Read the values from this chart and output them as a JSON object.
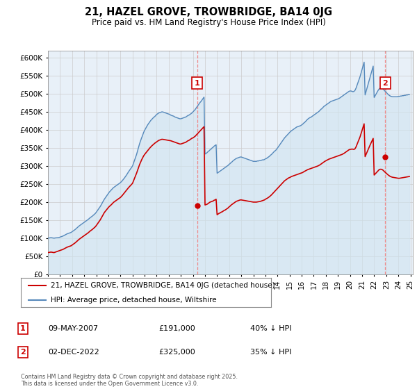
{
  "title": "21, HAZEL GROVE, TROWBRIDGE, BA14 0JG",
  "subtitle": "Price paid vs. HM Land Registry's House Price Index (HPI)",
  "ylim": [
    0,
    620000
  ],
  "yticks": [
    0,
    50000,
    100000,
    150000,
    200000,
    250000,
    300000,
    350000,
    400000,
    450000,
    500000,
    550000,
    600000
  ],
  "legend1": "21, HAZEL GROVE, TROWBRIDGE, BA14 0JG (detached house)",
  "legend2": "HPI: Average price, detached house, Wiltshire",
  "annotation1": {
    "label": "1",
    "date": "09-MAY-2007",
    "price": "£191,000",
    "desc": "40% ↓ HPI"
  },
  "annotation2": {
    "label": "2",
    "date": "02-DEC-2022",
    "price": "£325,000",
    "desc": "35% ↓ HPI"
  },
  "footer": "Contains HM Land Registry data © Crown copyright and database right 2025.\nThis data is licensed under the Open Government Licence v3.0.",
  "line_color_red": "#cc0000",
  "line_color_blue": "#5588bb",
  "fill_color_blue": "#d0e4f0",
  "vline_color": "#ee8888",
  "background_color": "#ffffff",
  "chart_bg_color": "#e8f0f8",
  "grid_color": "#cccccc",
  "hpi_years": [
    1995,
    1995.083,
    1995.167,
    1995.25,
    1995.333,
    1995.417,
    1995.5,
    1995.583,
    1995.667,
    1995.75,
    1995.833,
    1995.917,
    1996,
    1996.083,
    1996.167,
    1996.25,
    1996.333,
    1996.417,
    1996.5,
    1996.583,
    1996.667,
    1996.75,
    1996.833,
    1996.917,
    1997,
    1997.083,
    1997.167,
    1997.25,
    1997.333,
    1997.417,
    1997.5,
    1997.583,
    1997.667,
    1997.75,
    1997.833,
    1997.917,
    1998,
    1998.083,
    1998.167,
    1998.25,
    1998.333,
    1998.417,
    1998.5,
    1998.583,
    1998.667,
    1998.75,
    1998.833,
    1998.917,
    1999,
    1999.083,
    1999.167,
    1999.25,
    1999.333,
    1999.417,
    1999.5,
    1999.583,
    1999.667,
    1999.75,
    1999.833,
    1999.917,
    2000,
    2000.083,
    2000.167,
    2000.25,
    2000.333,
    2000.417,
    2000.5,
    2000.583,
    2000.667,
    2000.75,
    2000.833,
    2000.917,
    2001,
    2001.083,
    2001.167,
    2001.25,
    2001.333,
    2001.417,
    2001.5,
    2001.583,
    2001.667,
    2001.75,
    2001.833,
    2001.917,
    2002,
    2002.083,
    2002.167,
    2002.25,
    2002.333,
    2002.417,
    2002.5,
    2002.583,
    2002.667,
    2002.75,
    2002.833,
    2002.917,
    2003,
    2003.083,
    2003.167,
    2003.25,
    2003.333,
    2003.417,
    2003.5,
    2003.583,
    2003.667,
    2003.75,
    2003.833,
    2003.917,
    2004,
    2004.083,
    2004.167,
    2004.25,
    2004.333,
    2004.417,
    2004.5,
    2004.583,
    2004.667,
    2004.75,
    2004.833,
    2004.917,
    2005,
    2005.083,
    2005.167,
    2005.25,
    2005.333,
    2005.417,
    2005.5,
    2005.583,
    2005.667,
    2005.75,
    2005.833,
    2005.917,
    2006,
    2006.083,
    2006.167,
    2006.25,
    2006.333,
    2006.417,
    2006.5,
    2006.583,
    2006.667,
    2006.75,
    2006.833,
    2006.917,
    2007,
    2007.083,
    2007.167,
    2007.25,
    2007.333,
    2007.417,
    2007.5,
    2007.583,
    2007.667,
    2007.75,
    2007.833,
    2007.917,
    2008,
    2008.083,
    2008.167,
    2008.25,
    2008.333,
    2008.417,
    2008.5,
    2008.583,
    2008.667,
    2008.75,
    2008.833,
    2008.917,
    2009,
    2009.083,
    2009.167,
    2009.25,
    2009.333,
    2009.417,
    2009.5,
    2009.583,
    2009.667,
    2009.75,
    2009.833,
    2009.917,
    2010,
    2010.083,
    2010.167,
    2010.25,
    2010.333,
    2010.417,
    2010.5,
    2010.583,
    2010.667,
    2010.75,
    2010.833,
    2010.917,
    2011,
    2011.083,
    2011.167,
    2011.25,
    2011.333,
    2011.417,
    2011.5,
    2011.583,
    2011.667,
    2011.75,
    2011.833,
    2011.917,
    2012,
    2012.083,
    2012.167,
    2012.25,
    2012.333,
    2012.417,
    2012.5,
    2012.583,
    2012.667,
    2012.75,
    2012.833,
    2012.917,
    2013,
    2013.083,
    2013.167,
    2013.25,
    2013.333,
    2013.417,
    2013.5,
    2013.583,
    2013.667,
    2013.75,
    2013.833,
    2013.917,
    2014,
    2014.083,
    2014.167,
    2014.25,
    2014.333,
    2014.417,
    2014.5,
    2014.583,
    2014.667,
    2014.75,
    2014.833,
    2014.917,
    2015,
    2015.083,
    2015.167,
    2015.25,
    2015.333,
    2015.417,
    2015.5,
    2015.583,
    2015.667,
    2015.75,
    2015.833,
    2015.917,
    2016,
    2016.083,
    2016.167,
    2016.25,
    2016.333,
    2016.417,
    2016.5,
    2016.583,
    2016.667,
    2016.75,
    2016.833,
    2016.917,
    2017,
    2017.083,
    2017.167,
    2017.25,
    2017.333,
    2017.417,
    2017.5,
    2017.583,
    2017.667,
    2017.75,
    2017.833,
    2017.917,
    2018,
    2018.083,
    2018.167,
    2018.25,
    2018.333,
    2018.417,
    2018.5,
    2018.583,
    2018.667,
    2018.75,
    2018.833,
    2018.917,
    2019,
    2019.083,
    2019.167,
    2019.25,
    2019.333,
    2019.417,
    2019.5,
    2019.583,
    2019.667,
    2019.75,
    2019.833,
    2019.917,
    2020,
    2020.083,
    2020.167,
    2020.25,
    2020.333,
    2020.417,
    2020.5,
    2020.583,
    2020.667,
    2020.75,
    2020.833,
    2020.917,
    2021,
    2021.083,
    2021.167,
    2021.25,
    2021.333,
    2021.417,
    2021.5,
    2021.583,
    2021.667,
    2021.75,
    2021.833,
    2021.917,
    2022,
    2022.083,
    2022.167,
    2022.25,
    2022.333,
    2022.417,
    2022.5,
    2022.583,
    2022.667,
    2022.75,
    2022.833,
    2022.917,
    2023,
    2023.083,
    2023.167,
    2023.25,
    2023.333,
    2023.417,
    2023.5,
    2023.583,
    2023.667,
    2023.75,
    2023.833,
    2023.917,
    2024,
    2024.083,
    2024.167,
    2024.25,
    2024.333,
    2024.417,
    2024.5,
    2024.583,
    2024.667,
    2024.75,
    2024.833,
    2024.917
  ],
  "hpi_vals": [
    100000,
    100500,
    101000,
    101500,
    101000,
    100500,
    100000,
    100500,
    101000,
    101000,
    101500,
    102000,
    103000,
    104000,
    105000,
    106000,
    107500,
    109000,
    110500,
    112000,
    113000,
    114000,
    115000,
    116000,
    118000,
    120000,
    122000,
    124000,
    126500,
    129000,
    131500,
    134000,
    136000,
    138000,
    140000,
    142000,
    144000,
    146000,
    148000,
    150000,
    152000,
    154500,
    157000,
    159000,
    161000,
    163500,
    166000,
    168500,
    172000,
    176000,
    180000,
    184000,
    188000,
    193000,
    198000,
    203000,
    208000,
    212000,
    216000,
    220000,
    224000,
    228000,
    231000,
    234000,
    237000,
    240000,
    242000,
    244000,
    246000,
    248000,
    250000,
    252000,
    254000,
    257000,
    260000,
    263500,
    267000,
    271000,
    275000,
    279500,
    284000,
    288000,
    292000,
    296000,
    300000,
    308000,
    316000,
    324000,
    332000,
    342000,
    352000,
    362000,
    370000,
    378000,
    385000,
    393000,
    399000,
    404000,
    409000,
    414000,
    418000,
    422000,
    426000,
    429000,
    432000,
    435000,
    437000,
    440000,
    443000,
    445000,
    447000,
    448000,
    449000,
    450000,
    450000,
    449000,
    448000,
    447000,
    446000,
    445000,
    444000,
    443000,
    441000,
    440000,
    439000,
    438000,
    436000,
    435000,
    434000,
    433000,
    432000,
    431000,
    431000,
    432000,
    433000,
    434000,
    435000,
    436000,
    438000,
    440000,
    441000,
    443000,
    445000,
    447000,
    450000,
    453000,
    456000,
    460000,
    464000,
    468000,
    472000,
    476000,
    479000,
    483000,
    487000,
    491000,
    333000,
    335000,
    337000,
    340000,
    342000,
    345000,
    347000,
    350000,
    352000,
    355000,
    357000,
    359000,
    280000,
    282000,
    284000,
    286000,
    288000,
    290000,
    292000,
    294000,
    296000,
    298000,
    300000,
    302000,
    305000,
    307000,
    310000,
    312000,
    315000,
    317000,
    319000,
    321000,
    322000,
    323000,
    324000,
    325000,
    325000,
    324000,
    323000,
    322000,
    321000,
    320000,
    319000,
    318000,
    317000,
    316000,
    315000,
    314000,
    313000,
    313000,
    313000,
    313000,
    314000,
    314000,
    315000,
    315000,
    316000,
    317000,
    317000,
    318000,
    320000,
    321000,
    323000,
    325000,
    327000,
    330000,
    332000,
    335000,
    338000,
    341000,
    343000,
    346000,
    350000,
    354000,
    358000,
    362000,
    366000,
    370000,
    374000,
    378000,
    381000,
    384000,
    387000,
    390000,
    393000,
    396000,
    398000,
    400000,
    402000,
    404000,
    406000,
    408000,
    409000,
    410000,
    411000,
    412000,
    414000,
    416000,
    419000,
    421000,
    424000,
    427000,
    430000,
    432000,
    434000,
    435000,
    437000,
    439000,
    441000,
    443000,
    445000,
    447000,
    449000,
    451000,
    454000,
    457000,
    459000,
    462000,
    465000,
    467000,
    469000,
    471000,
    473000,
    475000,
    477000,
    479000,
    480000,
    481000,
    482000,
    483000,
    484000,
    485000,
    486000,
    487000,
    489000,
    491000,
    493000,
    495000,
    497000,
    499000,
    501000,
    503000,
    505000,
    507000,
    508000,
    508000,
    507000,
    506000,
    507000,
    510000,
    516000,
    524000,
    532000,
    540000,
    548000,
    558000,
    568000,
    578000,
    588000,
    497000,
    507000,
    517000,
    527000,
    537000,
    547000,
    557000,
    567000,
    577000,
    490000,
    495000,
    500000,
    505000,
    510000,
    514000,
    516000,
    517000,
    516000,
    513000,
    510000,
    507000,
    504000,
    501000,
    498000,
    496000,
    494000,
    493000,
    492000,
    492000,
    492000,
    492000,
    492000,
    492000,
    493000,
    493000,
    494000,
    494000,
    495000,
    495000,
    496000,
    496000,
    497000,
    497000,
    498000,
    498000
  ],
  "price_years": [
    1995,
    1995.083,
    1995.167,
    1995.25,
    1995.333,
    1995.417,
    1995.5,
    1995.583,
    1995.667,
    1995.75,
    1995.833,
    1995.917,
    1996,
    1996.083,
    1996.167,
    1996.25,
    1996.333,
    1996.417,
    1996.5,
    1996.583,
    1996.667,
    1996.75,
    1996.833,
    1996.917,
    1997,
    1997.083,
    1997.167,
    1997.25,
    1997.333,
    1997.417,
    1997.5,
    1997.583,
    1997.667,
    1997.75,
    1997.833,
    1997.917,
    1998,
    1998.083,
    1998.167,
    1998.25,
    1998.333,
    1998.417,
    1998.5,
    1998.583,
    1998.667,
    1998.75,
    1998.833,
    1998.917,
    1999,
    1999.083,
    1999.167,
    1999.25,
    1999.333,
    1999.417,
    1999.5,
    1999.583,
    1999.667,
    1999.75,
    1999.833,
    1999.917,
    2000,
    2000.083,
    2000.167,
    2000.25,
    2000.333,
    2000.417,
    2000.5,
    2000.583,
    2000.667,
    2000.75,
    2000.833,
    2000.917,
    2001,
    2001.083,
    2001.167,
    2001.25,
    2001.333,
    2001.417,
    2001.5,
    2001.583,
    2001.667,
    2001.75,
    2001.833,
    2001.917,
    2002,
    2002.083,
    2002.167,
    2002.25,
    2002.333,
    2002.417,
    2002.5,
    2002.583,
    2002.667,
    2002.75,
    2002.833,
    2002.917,
    2003,
    2003.083,
    2003.167,
    2003.25,
    2003.333,
    2003.417,
    2003.5,
    2003.583,
    2003.667,
    2003.75,
    2003.833,
    2003.917,
    2004,
    2004.083,
    2004.167,
    2004.25,
    2004.333,
    2004.417,
    2004.5,
    2004.583,
    2004.667,
    2004.75,
    2004.833,
    2004.917,
    2005,
    2005.083,
    2005.167,
    2005.25,
    2005.333,
    2005.417,
    2005.5,
    2005.583,
    2005.667,
    2005.75,
    2005.833,
    2005.917,
    2006,
    2006.083,
    2006.167,
    2006.25,
    2006.333,
    2006.417,
    2006.5,
    2006.583,
    2006.667,
    2006.75,
    2006.833,
    2006.917,
    2007,
    2007.083,
    2007.167,
    2007.25,
    2007.333,
    2007.417,
    2007.5,
    2007.583,
    2007.667,
    2007.75,
    2007.833,
    2007.917,
    2008,
    2008.083,
    2008.167,
    2008.25,
    2008.333,
    2008.417,
    2008.5,
    2008.583,
    2008.667,
    2008.75,
    2008.833,
    2008.917,
    2009,
    2009.083,
    2009.167,
    2009.25,
    2009.333,
    2009.417,
    2009.5,
    2009.583,
    2009.667,
    2009.75,
    2009.833,
    2009.917,
    2010,
    2010.083,
    2010.167,
    2010.25,
    2010.333,
    2010.417,
    2010.5,
    2010.583,
    2010.667,
    2010.75,
    2010.833,
    2010.917,
    2011,
    2011.083,
    2011.167,
    2011.25,
    2011.333,
    2011.417,
    2011.5,
    2011.583,
    2011.667,
    2011.75,
    2011.833,
    2011.917,
    2012,
    2012.083,
    2012.167,
    2012.25,
    2012.333,
    2012.417,
    2012.5,
    2012.583,
    2012.667,
    2012.75,
    2012.833,
    2012.917,
    2013,
    2013.083,
    2013.167,
    2013.25,
    2013.333,
    2013.417,
    2013.5,
    2013.583,
    2013.667,
    2013.75,
    2013.833,
    2013.917,
    2014,
    2014.083,
    2014.167,
    2014.25,
    2014.333,
    2014.417,
    2014.5,
    2014.583,
    2014.667,
    2014.75,
    2014.833,
    2014.917,
    2015,
    2015.083,
    2015.167,
    2015.25,
    2015.333,
    2015.417,
    2015.5,
    2015.583,
    2015.667,
    2015.75,
    2015.833,
    2015.917,
    2016,
    2016.083,
    2016.167,
    2016.25,
    2016.333,
    2016.417,
    2016.5,
    2016.583,
    2016.667,
    2016.75,
    2016.833,
    2016.917,
    2017,
    2017.083,
    2017.167,
    2017.25,
    2017.333,
    2017.417,
    2017.5,
    2017.583,
    2017.667,
    2017.75,
    2017.833,
    2017.917,
    2018,
    2018.083,
    2018.167,
    2018.25,
    2018.333,
    2018.417,
    2018.5,
    2018.583,
    2018.667,
    2018.75,
    2018.833,
    2018.917,
    2019,
    2019.083,
    2019.167,
    2019.25,
    2019.333,
    2019.417,
    2019.5,
    2019.583,
    2019.667,
    2019.75,
    2019.833,
    2019.917,
    2020,
    2020.083,
    2020.167,
    2020.25,
    2020.333,
    2020.417,
    2020.5,
    2020.583,
    2020.667,
    2020.75,
    2020.833,
    2020.917,
    2021,
    2021.083,
    2021.167,
    2021.25,
    2021.333,
    2021.417,
    2021.5,
    2021.583,
    2021.667,
    2021.75,
    2021.833,
    2021.917,
    2022,
    2022.083,
    2022.167,
    2022.25,
    2022.333,
    2022.417,
    2022.5,
    2022.583,
    2022.667,
    2022.75,
    2022.833,
    2022.917,
    2023,
    2023.083,
    2023.167,
    2023.25,
    2023.333,
    2023.417,
    2023.5,
    2023.583,
    2023.667,
    2023.75,
    2023.833,
    2023.917,
    2024,
    2024.083,
    2024.167,
    2024.25,
    2024.333,
    2024.417,
    2024.5,
    2024.583,
    2024.667,
    2024.75,
    2024.833,
    2024.917
  ],
  "price_vals": [
    60000,
    60500,
    61000,
    61500,
    61000,
    60500,
    60000,
    61000,
    62000,
    63000,
    64000,
    65000,
    66000,
    67000,
    68000,
    69000,
    70500,
    72000,
    73500,
    75000,
    76000,
    77000,
    78000,
    79000,
    81000,
    83000,
    85000,
    87000,
    89500,
    92000,
    94500,
    97000,
    99000,
    101000,
    103000,
    105000,
    107000,
    109000,
    111000,
    113000,
    115000,
    117500,
    120000,
    122000,
    124000,
    126500,
    129000,
    131500,
    135000,
    139000,
    143000,
    147000,
    151000,
    156000,
    161000,
    166000,
    171000,
    174500,
    178000,
    181500,
    185000,
    188000,
    190500,
    193000,
    196000,
    199000,
    201000,
    203000,
    205000,
    207000,
    209000,
    211000,
    213000,
    216000,
    219000,
    222500,
    226000,
    229500,
    233000,
    236500,
    240000,
    243000,
    246000,
    249000,
    252000,
    259000,
    266000,
    273000,
    280000,
    288000,
    296000,
    304000,
    310500,
    317000,
    322500,
    328000,
    332000,
    335500,
    339000,
    342500,
    346000,
    349500,
    352500,
    355500,
    358000,
    360500,
    363000,
    365000,
    367000,
    369000,
    371000,
    372000,
    373000,
    374000,
    374000,
    373500,
    373000,
    372500,
    372000,
    371500,
    371000,
    370500,
    370000,
    369000,
    368000,
    367000,
    366000,
    365000,
    364000,
    363000,
    362000,
    361000,
    361000,
    362000,
    363000,
    364000,
    365000,
    366000,
    368000,
    370000,
    371000,
    373000,
    375000,
    377000,
    378000,
    380000,
    382000,
    385000,
    388000,
    391000,
    394000,
    397000,
    400000,
    403000,
    406000,
    409000,
    192000,
    193000,
    194000,
    196000,
    198000,
    200000,
    201000,
    202000,
    203000,
    205000,
    206000,
    208000,
    165000,
    167000,
    169000,
    170000,
    172000,
    173000,
    175000,
    177000,
    178000,
    180000,
    182000,
    184000,
    187000,
    189000,
    192000,
    194000,
    196000,
    198000,
    200000,
    202000,
    203000,
    204000,
    205000,
    206000,
    206000,
    205500,
    205000,
    204500,
    204000,
    203500,
    203000,
    202500,
    202000,
    201500,
    201000,
    200500,
    200000,
    200000,
    200000,
    200000,
    200500,
    201000,
    201500,
    202000,
    203000,
    204000,
    205000,
    206000,
    208000,
    209500,
    211000,
    213000,
    215000,
    217500,
    220000,
    223000,
    226000,
    229000,
    232000,
    235000,
    238000,
    241000,
    244000,
    247000,
    250000,
    253000,
    256000,
    259000,
    261000,
    263000,
    265000,
    267000,
    268000,
    269500,
    271000,
    272000,
    273000,
    274000,
    275000,
    276000,
    277000,
    278000,
    279000,
    280000,
    281000,
    282000,
    284000,
    285500,
    287000,
    288500,
    290000,
    291000,
    292000,
    293000,
    294000,
    295000,
    296000,
    297000,
    298000,
    299000,
    300000,
    301500,
    303000,
    305000,
    307000,
    309000,
    311000,
    313000,
    314500,
    316000,
    317500,
    319000,
    320000,
    321000,
    322000,
    323000,
    324000,
    325000,
    326000,
    327000,
    328000,
    329000,
    330000,
    331000,
    332000,
    333500,
    335000,
    337000,
    339000,
    341000,
    343000,
    345000,
    346000,
    346500,
    347000,
    346500,
    346000,
    348000,
    353000,
    360000,
    367000,
    374000,
    381000,
    390000,
    399000,
    408000,
    417000,
    326000,
    332500,
    339000,
    345500,
    352000,
    358500,
    364500,
    370500,
    376500,
    275000,
    278000,
    281000,
    284000,
    287000,
    290000,
    291000,
    291000,
    290000,
    288000,
    285000,
    282500,
    280000,
    277500,
    275000,
    273000,
    271000,
    270000,
    269000,
    268500,
    268000,
    267500,
    267000,
    266500,
    266000,
    266000,
    266500,
    267000,
    267500,
    268000,
    268500,
    269000,
    269500,
    270000,
    270500,
    271000
  ]
}
